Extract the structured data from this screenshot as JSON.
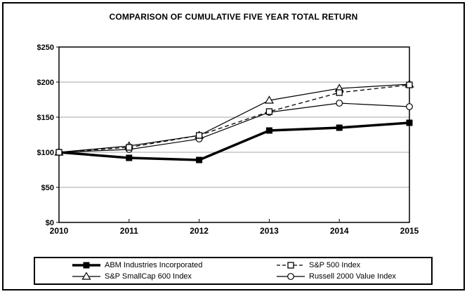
{
  "chart_data": {
    "type": "line",
    "title": "COMPARISON OF CUMULATIVE FIVE YEAR TOTAL RETURN",
    "x": [
      "2010",
      "2011",
      "2012",
      "2013",
      "2014",
      "2015"
    ],
    "xlabel": "",
    "ylabel": "",
    "ylim": [
      0,
      250
    ],
    "ytick_step": 50,
    "ytick_labels": [
      "$0",
      "$50",
      "$100",
      "$150",
      "$200",
      "$250"
    ],
    "grid": true,
    "legend_position": "bottom",
    "series": [
      {
        "name": "ABM Industries Incorporated",
        "marker": "filled-square",
        "line": "thick-solid",
        "values": [
          100,
          92,
          89,
          131,
          135,
          142
        ]
      },
      {
        "name": "S&P 500 Index",
        "marker": "open-square",
        "line": "dashed",
        "values": [
          100,
          107,
          124,
          158,
          185,
          196
        ]
      },
      {
        "name": "S&P SmallCap 600 Index",
        "marker": "open-triangle",
        "line": "thin-solid",
        "values": [
          100,
          109,
          124,
          174,
          191,
          197
        ]
      },
      {
        "name": "Russell 2000 Value Index",
        "marker": "open-circle",
        "line": "thin-solid",
        "values": [
          100,
          104,
          119,
          157,
          170,
          165
        ]
      }
    ],
    "colors": {
      "line": "#000000",
      "grid": "#a6a6a6",
      "background": "#ffffff"
    }
  }
}
